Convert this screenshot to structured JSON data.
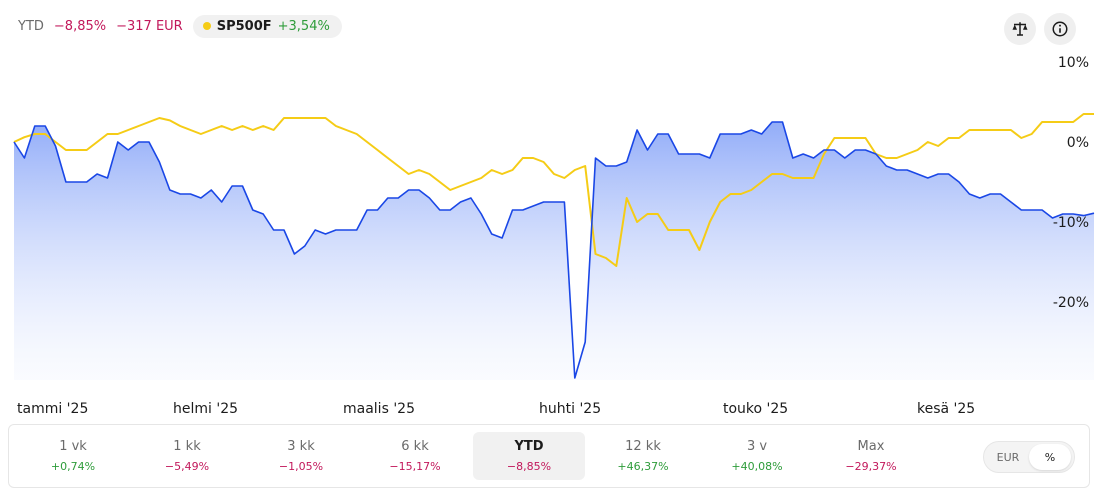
{
  "header": {
    "period_label": "YTD",
    "return_pct": "−8,85%",
    "return_abs": "−317 EUR",
    "benchmark_name": "SP500F",
    "benchmark_return": "+3,54%"
  },
  "icons": {
    "compare": "balance-scale-icon",
    "info": "info-icon"
  },
  "colors": {
    "portfolio": "#1a47e6",
    "benchmark": "#f5cc16",
    "negative": "#c2185b",
    "positive": "#2e9c3a"
  },
  "chart_data": {
    "type": "area",
    "x_labels": [
      "tammi '25",
      "helmi '25",
      "maalis '25",
      "huhti '25",
      "touko '25",
      "kesä '25"
    ],
    "y_ticks": [
      "10%",
      "0%",
      "-10%",
      "-20%"
    ],
    "y_tick_values": [
      10,
      0,
      -10,
      -20
    ],
    "ylim": [
      -30,
      11
    ],
    "series": [
      {
        "name": "",
        "role": "portfolio",
        "values": [
          0,
          -2,
          2,
          2,
          -0.5,
          -5,
          -5,
          -5,
          -4,
          -4.5,
          0,
          -1,
          0,
          0,
          -2.5,
          -6,
          -6.5,
          -6.5,
          -7,
          -6,
          -7.5,
          -5.5,
          -5.5,
          -8.5,
          -9,
          -11,
          -11,
          -14,
          -13,
          -11,
          -11.5,
          -11,
          -11,
          -11,
          -8.5,
          -8.5,
          -7,
          -7,
          -6,
          -6,
          -7,
          -8.5,
          -8.5,
          -7.5,
          -7,
          -9,
          -11.5,
          -12,
          -8.5,
          -8.5,
          -8,
          -7.5,
          -7.5,
          -7.5,
          -29.5,
          -25,
          -2,
          -3,
          -3,
          -2.5,
          1.5,
          -1,
          1,
          1,
          -1.5,
          -1.5,
          -1.5,
          -2,
          1,
          1,
          1,
          1.5,
          1,
          2.5,
          2.5,
          -2,
          -1.5,
          -2,
          -1,
          -1,
          -2,
          -1,
          -1,
          -1.5,
          -3,
          -3.5,
          -3.5,
          -4,
          -4.5,
          -4,
          -4,
          -5,
          -6.5,
          -7,
          -6.5,
          -6.5,
          -7.5,
          -8.5,
          -8.5,
          -8.5,
          -9.5,
          -9,
          -9,
          -9.2,
          -8.9
        ],
        "final": -8.85
      },
      {
        "name": "SP500F",
        "role": "benchmark",
        "values": [
          0,
          0.6,
          1,
          1,
          0,
          -1,
          -1,
          -1,
          0,
          1,
          1,
          1.5,
          2,
          2.5,
          3,
          2.7,
          2,
          1.5,
          1,
          1.5,
          2,
          1.5,
          2,
          1.5,
          2,
          1.5,
          3,
          3,
          3,
          3,
          3,
          2,
          1.5,
          1,
          0,
          -1,
          -2,
          -3,
          -4,
          -3.5,
          -4,
          -5,
          -6,
          -5.5,
          -5,
          -4.5,
          -3.5,
          -4,
          -3.5,
          -2,
          -2,
          -2.5,
          -4,
          -4.5,
          -3.5,
          -3,
          -14,
          -14.5,
          -15.5,
          -7,
          -10,
          -9,
          -9,
          -11,
          -11,
          -11,
          -13.5,
          -10,
          -7.5,
          -6.5,
          -6.5,
          -6,
          -5,
          -4,
          -4,
          -4.5,
          -4.5,
          -4.5,
          -1.5,
          0.5,
          0.5,
          0.5,
          0.5,
          -1.5,
          -2,
          -2,
          -1.5,
          -1,
          0,
          -0.5,
          0.5,
          0.5,
          1.5,
          1.5,
          1.5,
          1.5,
          1.5,
          0.5,
          1,
          2.5,
          2.5,
          2.5,
          2.5,
          3.5,
          3.5
        ],
        "final": 3.54
      }
    ],
    "grid": false,
    "legend": "top-left"
  },
  "periods": [
    {
      "label": "1 vk",
      "value": "+0,74%",
      "sign": "pos",
      "active": false
    },
    {
      "label": "1 kk",
      "value": "−5,49%",
      "sign": "neg",
      "active": false
    },
    {
      "label": "3 kk",
      "value": "−1,05%",
      "sign": "neg",
      "active": false
    },
    {
      "label": "6 kk",
      "value": "−15,17%",
      "sign": "neg",
      "active": false
    },
    {
      "label": "YTD",
      "value": "−8,85%",
      "sign": "neg",
      "active": true
    },
    {
      "label": "12 kk",
      "value": "+46,37%",
      "sign": "pos",
      "active": false
    },
    {
      "label": "3 v",
      "value": "+40,08%",
      "sign": "pos",
      "active": false
    },
    {
      "label": "Max",
      "value": "−29,37%",
      "sign": "neg",
      "active": false
    }
  ],
  "unit_toggle": {
    "options": [
      "EUR",
      "%"
    ],
    "selected": "%"
  }
}
